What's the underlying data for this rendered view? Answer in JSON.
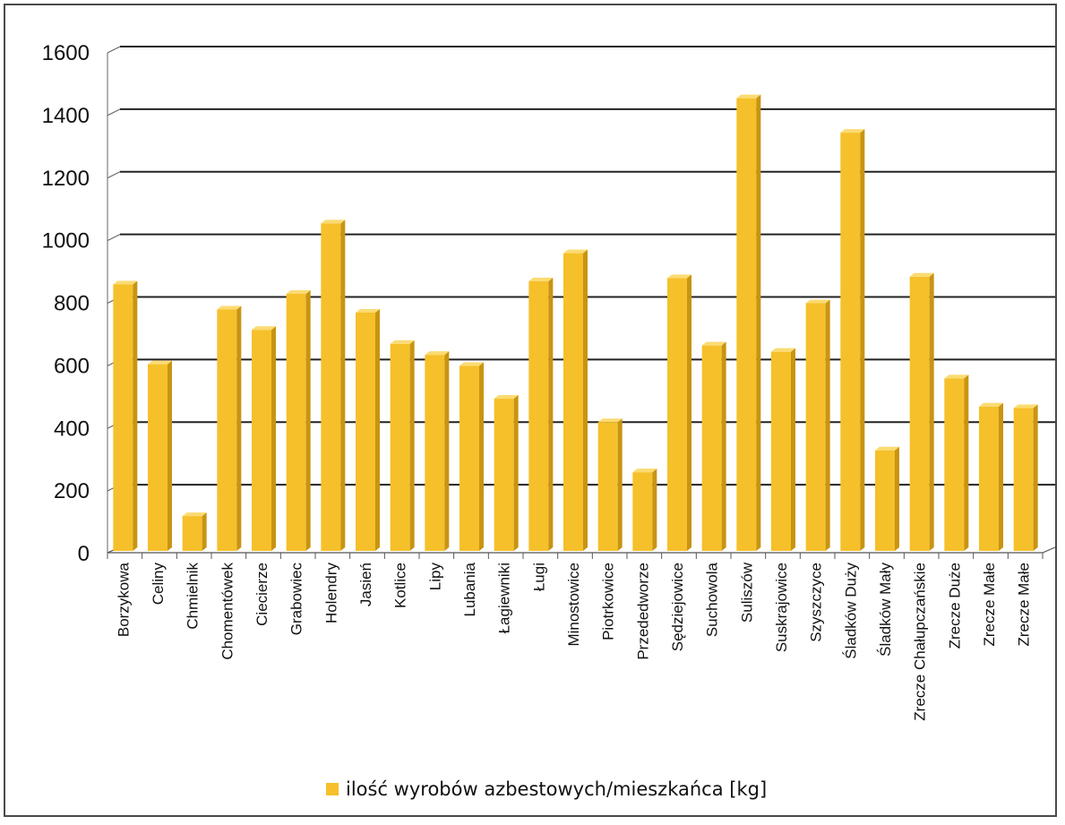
{
  "chart_data": {
    "type": "bar",
    "categories": [
      "Borzykowa",
      "Celiny",
      "Chmielnik",
      "Chomentówek",
      "Ciecierze",
      "Grabowiec",
      "Holendry",
      "Jasień",
      "Kotlice",
      "Lipy",
      "Lubania",
      "Łagiewniki",
      "Ługi",
      "Minostowice",
      "Piotrkowice",
      "Przededworze",
      "Sędziejowice",
      "Suchowola",
      "Suliszów",
      "Suskrajowice",
      "Szyszczyce",
      "Śladków Duży",
      "Śladków Mały",
      "Zrecze Chałupczańskie",
      "Zrecze Duże",
      "Zrecze Małe",
      "Zrecze Małe"
    ],
    "series": [
      {
        "name": "ilość wyrobów azbestowych/mieszkańca [kg]",
        "values": [
          860,
          605,
          120,
          780,
          715,
          830,
          1055,
          770,
          670,
          635,
          600,
          495,
          870,
          960,
          420,
          260,
          880,
          665,
          1455,
          645,
          800,
          1345,
          330,
          885,
          560,
          470,
          465
        ]
      }
    ],
    "yticks": [
      "0",
      "200",
      "400",
      "600",
      "800",
      "1000",
      "1200",
      "1400",
      "1600"
    ],
    "ylim": [
      0,
      1600
    ],
    "grid": true,
    "legend_position": "bottom",
    "bar_color": "#F5C02A",
    "bar_side_color": "#C89412",
    "bar_top_color": "#FBDB72"
  }
}
